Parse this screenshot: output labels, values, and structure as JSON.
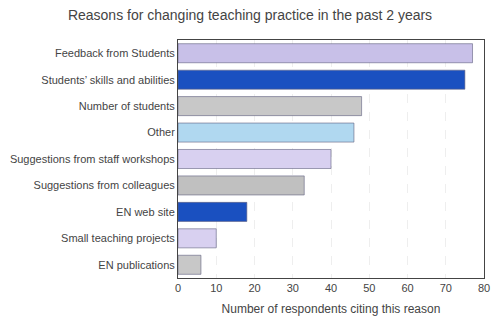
{
  "chart_data": {
    "type": "bar",
    "title": "Reasons for changing teaching practice in the past 2 years",
    "xlabel": "Number of respondents citing this reason",
    "orientation": "horizontal",
    "categories": [
      "EN publications",
      "Small teaching projects",
      "EN web site",
      "Suggestions from colleagues",
      "Suggestions from staff workshops",
      "Other",
      "Number of students",
      "Students’ skills and abilities",
      "Feedback from Students"
    ],
    "values": [
      6,
      10,
      18,
      33,
      40,
      46,
      48,
      75,
      77
    ],
    "colors": [
      "#c8c8c8",
      "#d8d0f0",
      "#1a50c0",
      "#c0c0c0",
      "#d8d0f0",
      "#b0d8f0",
      "#c8c8c8",
      "#1a50c0",
      "#c8c0e8"
    ],
    "xlim": [
      0,
      80
    ],
    "xticks": [
      0,
      10,
      20,
      30,
      40,
      50,
      60,
      70,
      80
    ],
    "grid": true
  }
}
